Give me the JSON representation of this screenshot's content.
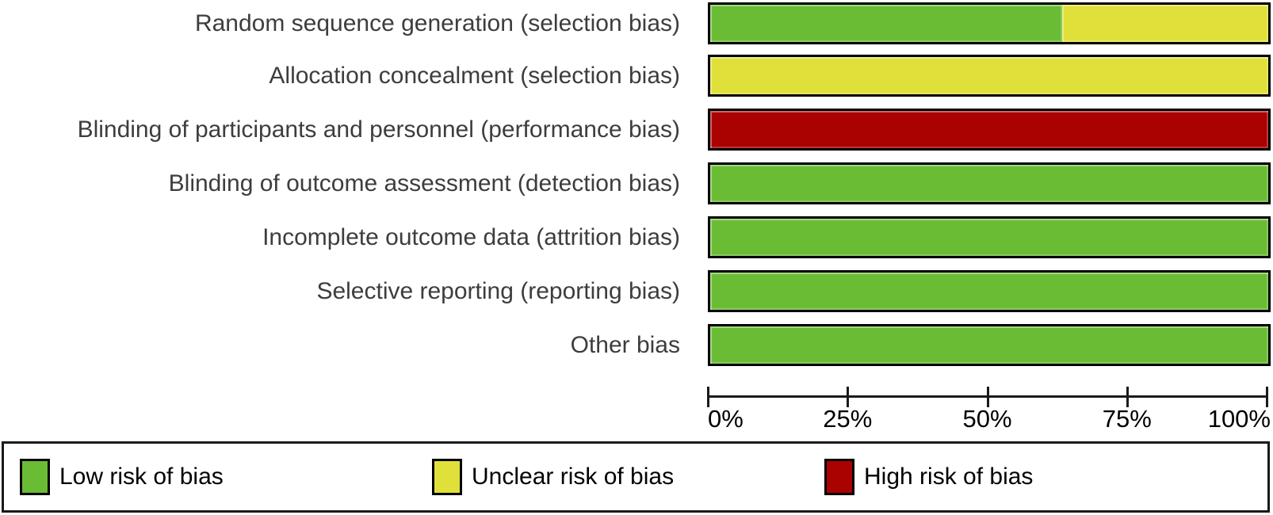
{
  "chart_data": {
    "type": "bar",
    "variant": "horizontal-stacked-percentage",
    "title": "",
    "xlabel": "",
    "ylabel": "",
    "xlim": [
      0,
      100
    ],
    "grid": false,
    "legend_position": "bottom",
    "categories": [
      "Random sequence generation (selection bias)",
      "Allocation concealment (selection bias)",
      "Blinding of participants and personnel (performance bias)",
      "Blinding of outcome assessment (detection bias)",
      "Incomplete outcome data (attrition bias)",
      "Selective reporting (reporting bias)",
      "Other bias"
    ],
    "series": [
      {
        "name": "Low risk of bias",
        "color": "#6abc35",
        "values": [
          63,
          0,
          0,
          100,
          100,
          100,
          100
        ]
      },
      {
        "name": "Unclear risk of bias",
        "color": "#e0e03a",
        "values": [
          37,
          100,
          0,
          0,
          0,
          0,
          0
        ]
      },
      {
        "name": "High risk of bias",
        "color": "#aa0101",
        "values": [
          0,
          0,
          100,
          0,
          0,
          0,
          0
        ]
      }
    ],
    "x_ticks": [
      {
        "value": 0,
        "label": "0%"
      },
      {
        "value": 25,
        "label": "25%"
      },
      {
        "value": 50,
        "label": "50%"
      },
      {
        "value": 75,
        "label": "75%"
      },
      {
        "value": 100,
        "label": "100%"
      }
    ]
  },
  "legend": {
    "items": [
      {
        "label": "Low risk of bias",
        "color": "#6abc35"
      },
      {
        "label": "Unclear risk of bias",
        "color": "#e0e03a"
      },
      {
        "label": "High risk of bias",
        "color": "#aa0101"
      }
    ]
  },
  "colors": {
    "low_risk": "#6abc35",
    "unclear_risk": "#e0e03a",
    "high_risk": "#aa0101",
    "bar_border": "#000000",
    "axis": "#1a1a1a",
    "label_text": "#3d3d3d",
    "background": "#ffffff"
  }
}
